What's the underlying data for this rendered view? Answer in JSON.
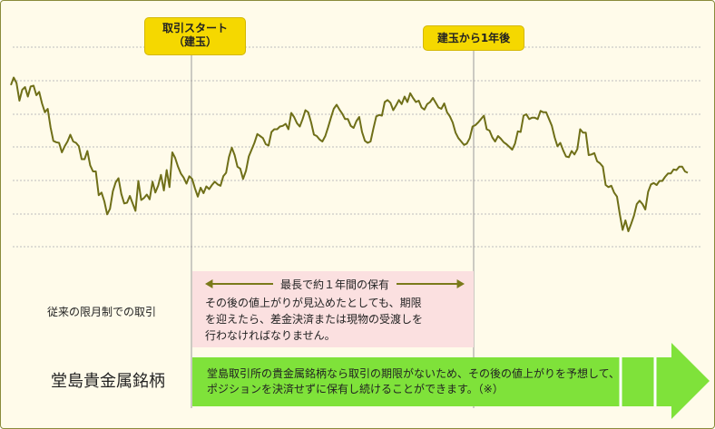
{
  "badges": {
    "trade_start_line1": "取引スタート",
    "trade_start_line2": "（建玉）",
    "one_year_after": "建玉から1年後"
  },
  "traditional": {
    "label": "従来の限月制での取引",
    "period_title": "最長で約１年間の保有",
    "body_line1": "その後の値上がりが見込めたとしても、期限",
    "body_line2": "を迎えたら、差金決済または現物の受渡しを",
    "body_line3": "行わなければなりません。"
  },
  "dojima": {
    "label": "堂島貴金属銘柄",
    "body_line1": "堂島取引所の貴金属銘柄なら取引の期限がないため、その後の値上がりを予想して、",
    "body_line2": "ポジションを決済せずに保有し続けることができます。（※）"
  },
  "colors": {
    "badge": "#f5d800",
    "pink": "#fbe0e0",
    "green": "#7fe23a",
    "arrow_olive": "#7a7a1a",
    "price_line": "#6f6f18"
  },
  "chart_data": {
    "type": "line",
    "series": [
      {
        "values": [
          255,
          266,
          258,
          232,
          248,
          252,
          238,
          253,
          254,
          240,
          245,
          228,
          215,
          220,
          193,
          173,
          171,
          170,
          156,
          165,
          172,
          182,
          172,
          170,
          165,
          146,
          146,
          158,
          137,
          128,
          128,
          93,
          97,
          84,
          65,
          73,
          99,
          112,
          118,
          95,
          81,
          82,
          92,
          81,
          70,
          114,
          86,
          89,
          94,
          87,
          113,
          97,
          107,
          123,
          100,
          130,
          105,
          156,
          148,
          135,
          125,
          119,
          110,
          121,
          117,
          103,
          91,
          104,
          96,
          106,
          102,
          108,
          113,
          109,
          107,
          121,
          126,
          149,
          163,
          152,
          135,
          132,
          117,
          129,
          150,
          160,
          170,
          183,
          180,
          177,
          168,
          166,
          186,
          190,
          190,
          194,
          195,
          198,
          190,
          214,
          208,
          199,
          194,
          205,
          218,
          215,
          200,
          182,
          180,
          175,
          172,
          180,
          193,
          207,
          220,
          226,
          219,
          213,
          205,
          205,
          195,
          192,
          202,
          208,
          186,
          173,
          170,
          172,
          191,
          209,
          211,
          210,
          230,
          233,
          229,
          218,
          225,
          233,
          227,
          238,
          230,
          243,
          236,
          230,
          232,
          222,
          219,
          227,
          230,
          236,
          229,
          222,
          220,
          228,
          215,
          209,
          200,
          185,
          177,
          172,
          167,
          169,
          177,
          194,
          196,
          200,
          205,
          210,
          190,
          188,
          178,
          172,
          180,
          176,
          171,
          168,
          164,
          160,
          169,
          187,
          186,
          210,
          212,
          205,
          207,
          207,
          205,
          217,
          215,
          215,
          205,
          195,
          178,
          165,
          170,
          159,
          150,
          149,
          158,
          153,
          161,
          190,
          185,
          185,
          152,
          153,
          155,
          143,
          140,
          135,
          108,
          105,
          107,
          97,
          91,
          65,
          42,
          56,
          40,
          51,
          63,
          80,
          85,
          80,
          72,
          98,
          109,
          111,
          108,
          114,
          114,
          120,
          125,
          125,
          131,
          130,
          135,
          135,
          128,
          126
        ]
      }
    ]
  }
}
